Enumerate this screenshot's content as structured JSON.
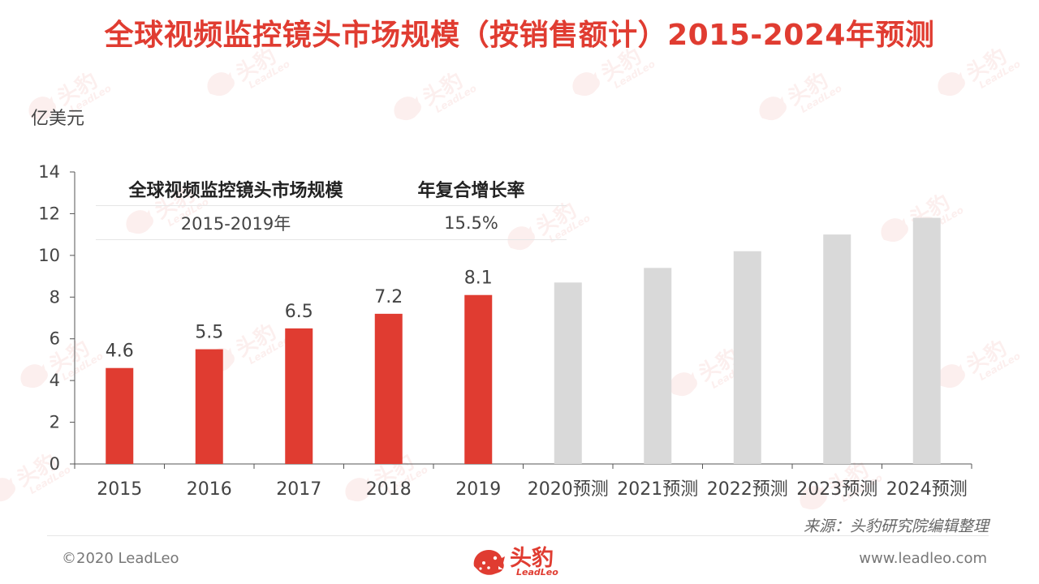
{
  "title": "全球视频监控镜头市场规模（按销售额计）2015-2024年预测",
  "unit_label": "亿美元",
  "inset_table": {
    "headers": [
      "全球视频监控镜头市场规模",
      "年复合增长率"
    ],
    "row": [
      "2015-2019年",
      "15.5%"
    ]
  },
  "chart_data": {
    "type": "bar",
    "categories": [
      "2015",
      "2016",
      "2017",
      "2018",
      "2019",
      "2020预测",
      "2021预测",
      "2022预测",
      "2023预测",
      "2024预测"
    ],
    "values": [
      4.6,
      5.5,
      6.5,
      7.2,
      8.1,
      8.7,
      9.4,
      10.2,
      11.0,
      11.8
    ],
    "data_labels": [
      "4.6",
      "5.5",
      "6.5",
      "7.2",
      "8.1",
      null,
      null,
      null,
      null,
      null
    ],
    "ylabel": "亿美元",
    "ylim": [
      0,
      14
    ],
    "yticks": [
      0,
      2,
      4,
      6,
      8,
      10,
      12,
      14
    ],
    "grid": false,
    "colors": {
      "actual": "#e03c31",
      "forecast": "#d9d9d9"
    }
  },
  "source": "来源：头豹研究院编辑整理",
  "footer": {
    "copyright": "©2020 LeadLeo",
    "website": "www.leadleo.com"
  },
  "logo": {
    "cn": "头豹",
    "en": "LeadLeo"
  },
  "colors": {
    "accent": "#e03c31"
  }
}
